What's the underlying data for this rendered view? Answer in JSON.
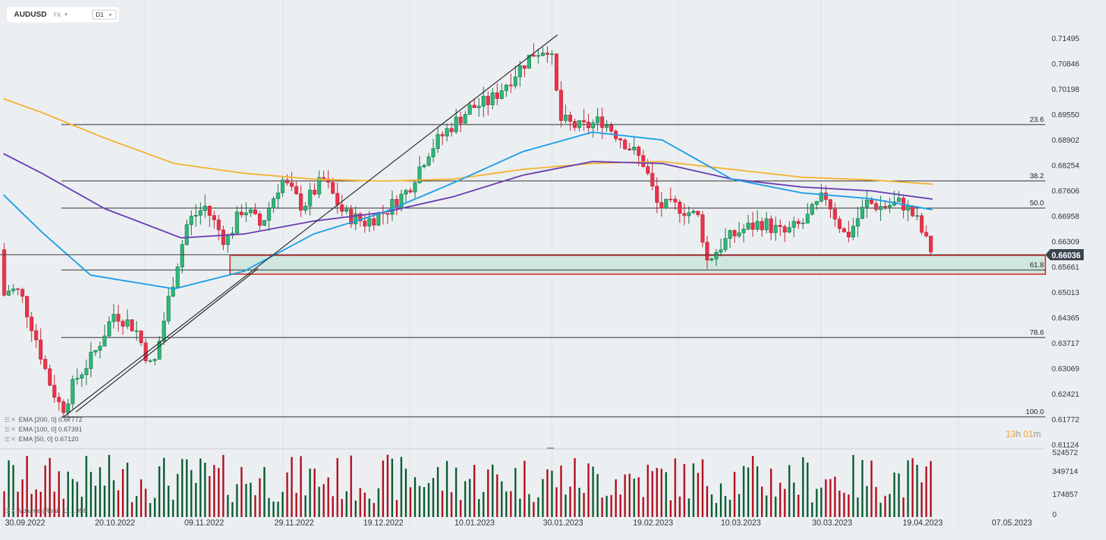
{
  "header": {
    "symbol": "AUDUSD",
    "market": "FX",
    "timeframe": "D1"
  },
  "indicators": [
    {
      "label": "EMA [200, 0]",
      "value": "0.67772",
      "color": "#f5b335"
    },
    {
      "label": "EMA [100, 0]",
      "value": "0.67391",
      "color": "#6a3fb5"
    },
    {
      "label": "EMA [50, 0]",
      "value": "0.67120",
      "color": "#1e9fe6"
    }
  ],
  "volume_label": "Volume (Real) 11…958",
  "countdown": {
    "h": "13",
    "h_unit": "h",
    "m": "01",
    "m_unit": "m"
  },
  "chart_data": {
    "type": "candlestick",
    "instrument": "AUDUSD",
    "current_price": 0.66036,
    "price_ticks": [
      "0.71495",
      "0.70846",
      "0.70198",
      "0.69550",
      "0.68902",
      "0.68254",
      "0.67606",
      "0.66958",
      "0.66309",
      "0.65661",
      "0.65013",
      "0.64365",
      "0.63717",
      "0.63069",
      "0.62421",
      "0.61772",
      "0.61124"
    ],
    "volume_ticks": [
      "524572",
      "349714",
      "174857",
      "0"
    ],
    "date_labels": [
      "30.09.2022",
      "20.10.2022",
      "09.11.2022",
      "29.11.2022",
      "19.12.2022",
      "10.01.2023",
      "30.01.2023",
      "19.02.2023",
      "10.03.2023",
      "30.03.2023",
      "19.04.2023",
      "07.05.2023"
    ],
    "fib_levels": [
      {
        "label": "23.6",
        "price": 0.693
      },
      {
        "label": "38.2",
        "price": 0.6785
      },
      {
        "label": "50.0",
        "price": 0.6717
      },
      {
        "label": "61.8",
        "price": 0.6558
      },
      {
        "label": "78.6",
        "price": 0.6385
      },
      {
        "label": "100.0",
        "price": 0.6184
      }
    ],
    "support_zone": [
      0.6558,
      0.6607
    ],
    "trendline": {
      "from": [
        0.618
      ],
      "to": [
        0.716
      ]
    },
    "ema_200_end": 0.67772,
    "ema_100_end": 0.67391,
    "ema_50_end": 0.6712
  }
}
